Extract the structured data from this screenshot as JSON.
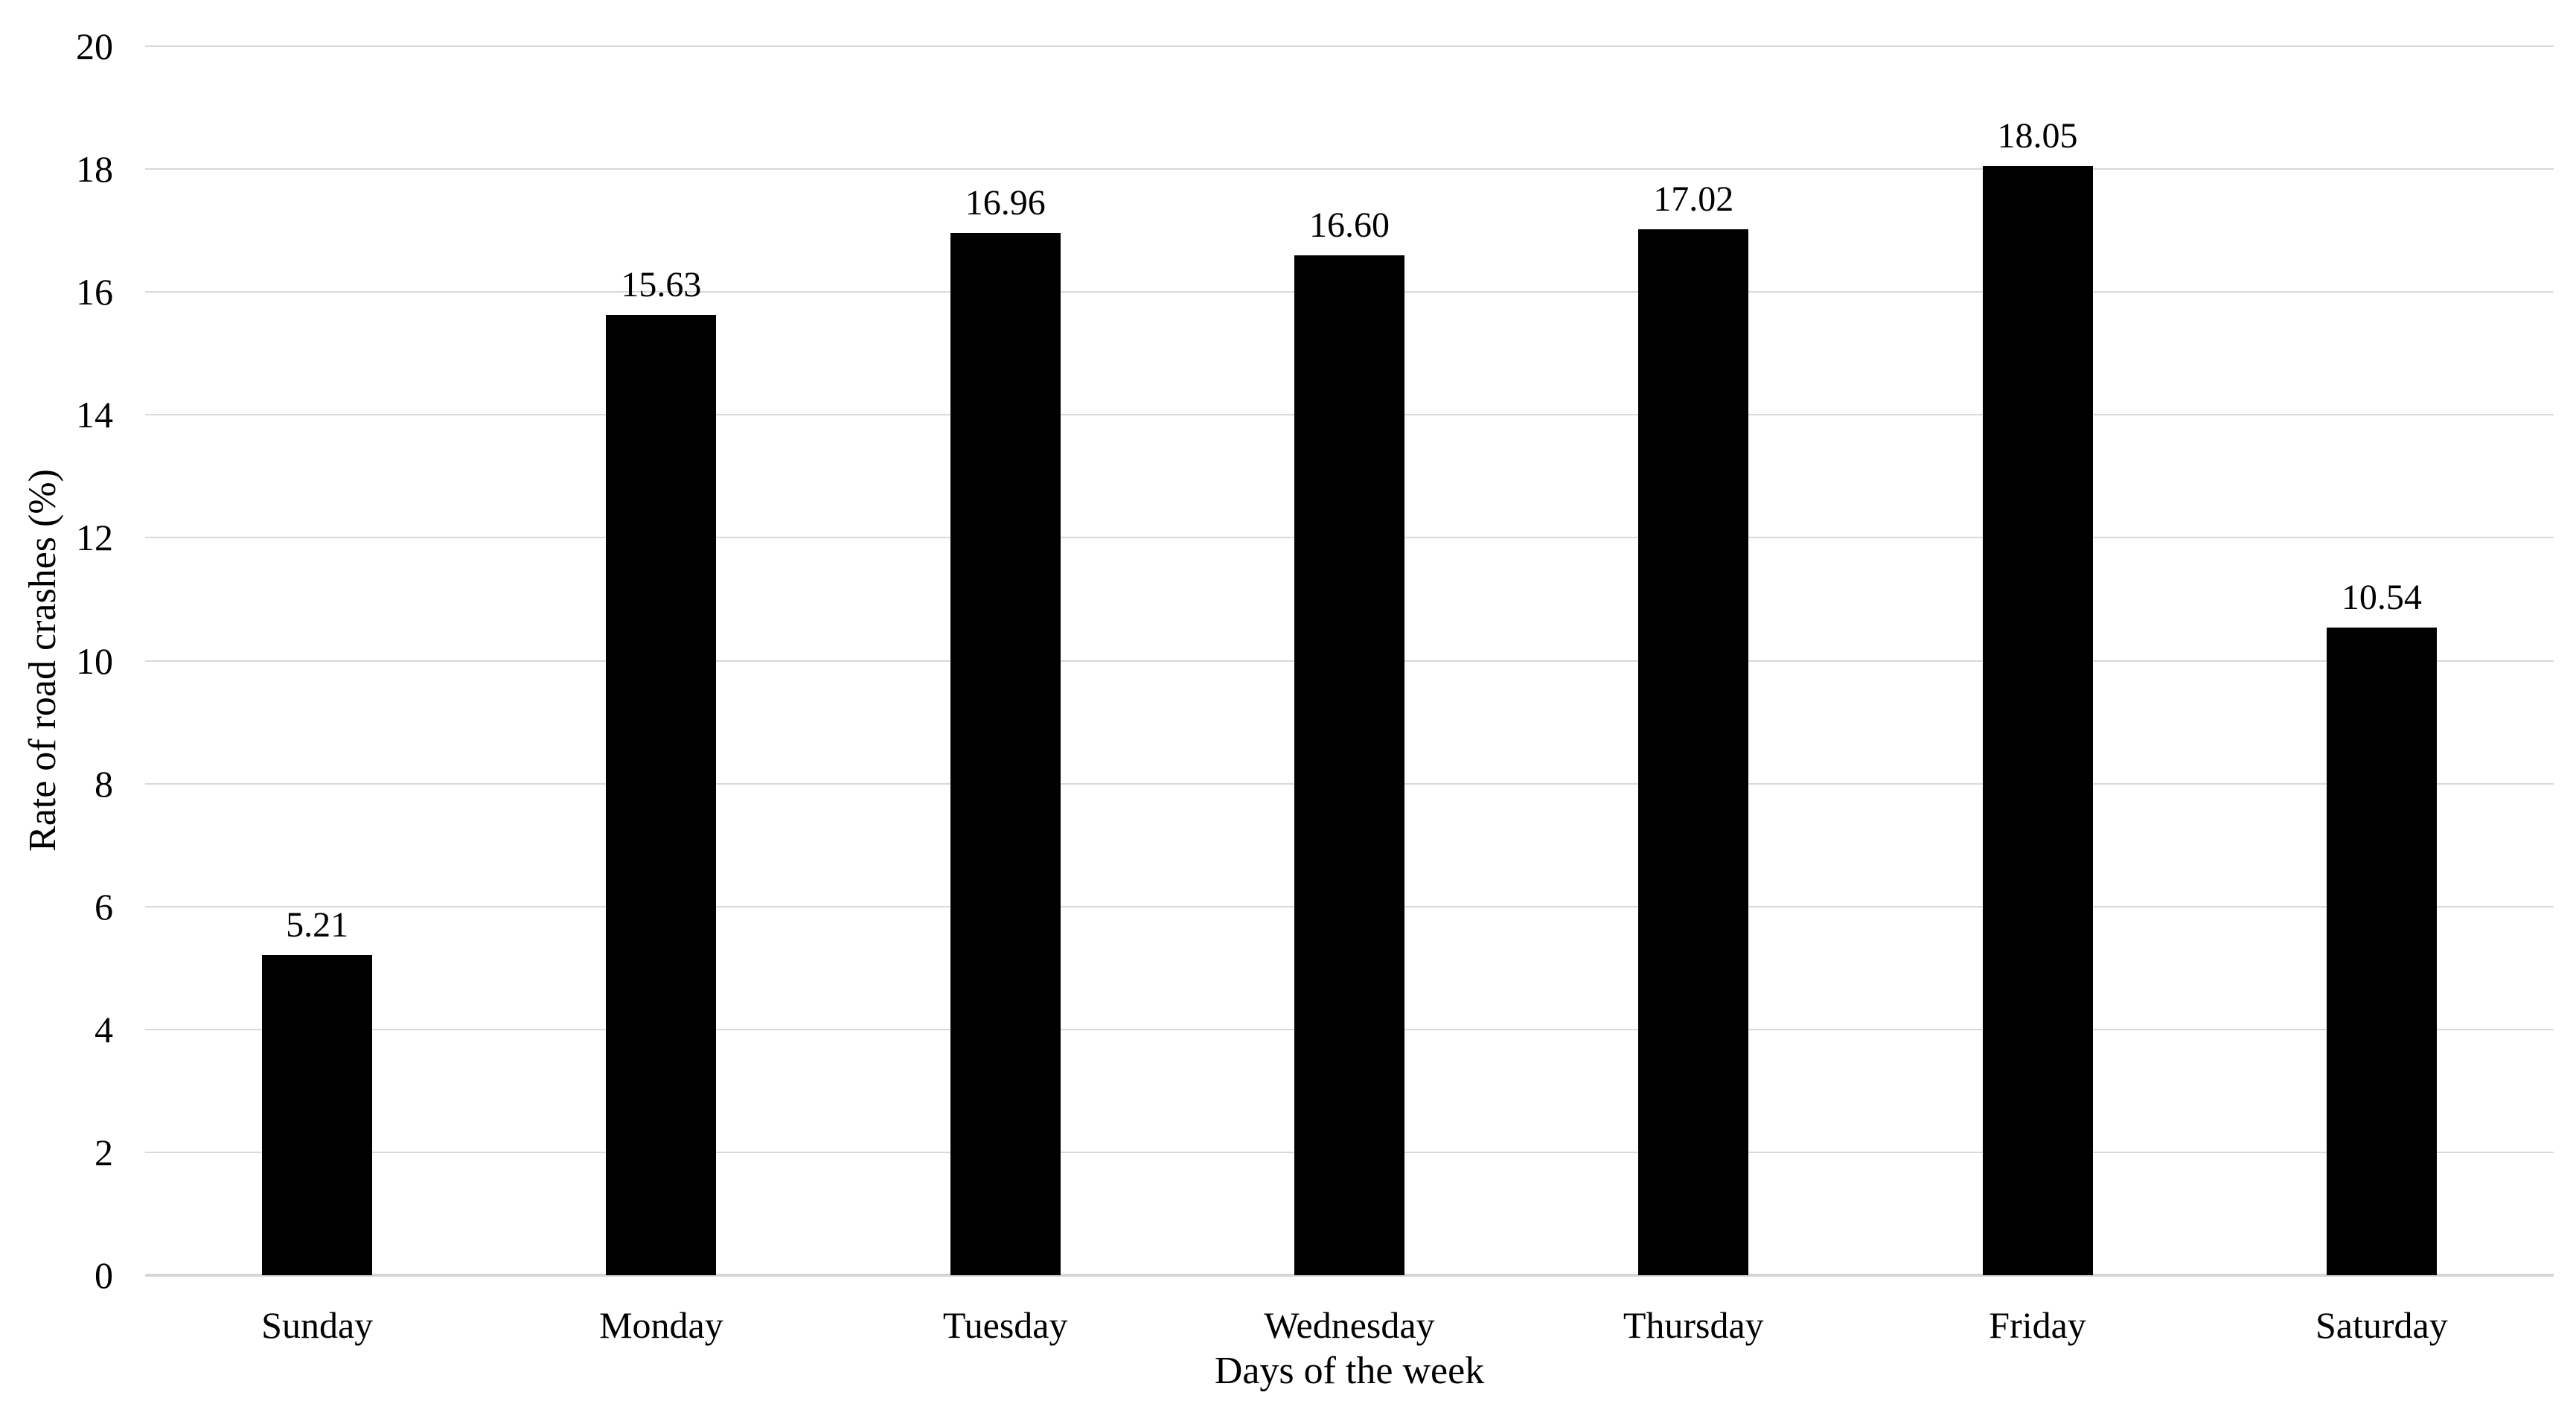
{
  "chart_data": {
    "type": "bar",
    "title": "",
    "xlabel": "Days of the week",
    "ylabel": "Rate of road crashes (%)",
    "categories": [
      "Sunday",
      "Monday",
      "Tuesday",
      "Wednesday",
      "Thursday",
      "Friday",
      "Saturday"
    ],
    "values": [
      5.21,
      15.63,
      16.96,
      16.6,
      17.02,
      18.05,
      10.54
    ],
    "value_labels": [
      "5.21",
      "15.63",
      "16.96",
      "16.60",
      "17.02",
      "18.05",
      "10.54"
    ],
    "ylim": [
      0,
      20
    ],
    "yticks": [
      0,
      2,
      4,
      6,
      8,
      10,
      12,
      14,
      16,
      18,
      20
    ],
    "ytick_labels": [
      "0",
      "2",
      "4",
      "6",
      "8",
      "10",
      "12",
      "14",
      "16",
      "18",
      "20"
    ],
    "grid": true,
    "grid_direction": "horizontal",
    "legend": false,
    "bar_color": "#000000",
    "gridline_color": "#d9d9d9",
    "text_color": "#000000",
    "background_color": "#ffffff"
  }
}
